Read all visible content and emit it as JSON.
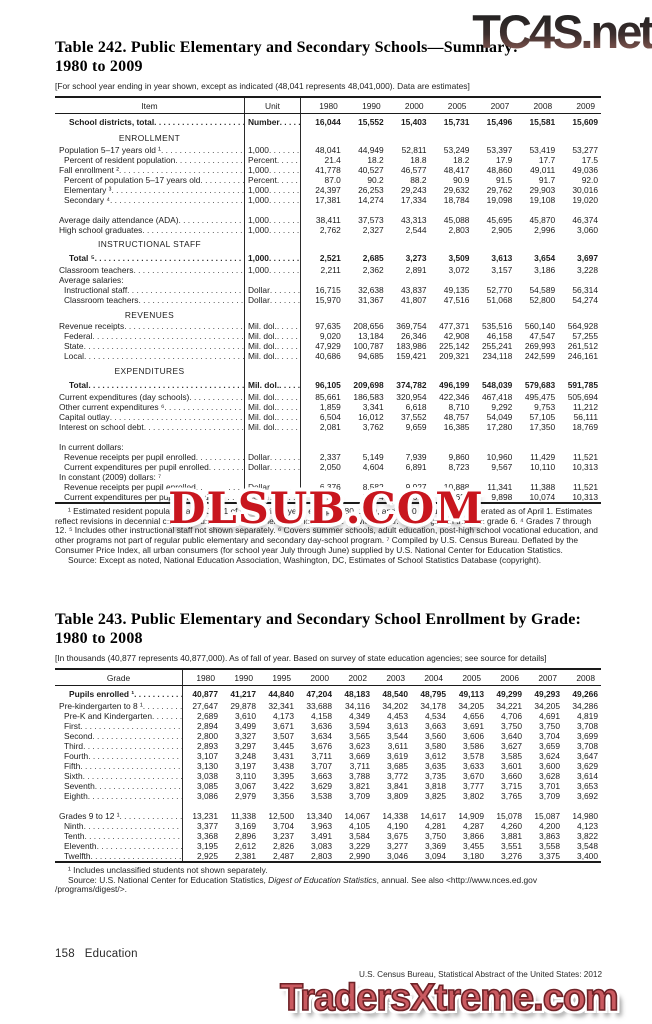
{
  "watermarks": {
    "top": "TC4S.net",
    "middle": "DLSUB.COM",
    "bottom": "TradersXtreme.com"
  },
  "footer": {
    "page_number": "158",
    "section_label": "Education",
    "source_line": "U.S. Census Bureau, Statistical Abstract of the United States: 2012"
  },
  "table242": {
    "title": "Table 242. Public Elementary and Secondary Schools—Summary:",
    "title_line2": "1980 to 2009",
    "note": "[For school year ending in year shown, except as indicated (48,041 represents 48,041,000). Data are estimates]",
    "columns": [
      "Item",
      "Unit",
      "1980",
      "1990",
      "2000",
      "2005",
      "2007",
      "2008",
      "2009"
    ],
    "rows": [
      {
        "type": "data",
        "tall": true,
        "bold": true,
        "indent": 2,
        "label": "School districts, total",
        "unit": "Number",
        "values": [
          "16,044",
          "15,552",
          "15,403",
          "15,731",
          "15,496",
          "15,581",
          "15,609"
        ]
      },
      {
        "type": "section",
        "label": "ENROLLMENT"
      },
      {
        "type": "data",
        "indent": 0,
        "label": "Population 5–17 years old ¹",
        "unit": "1,000",
        "values": [
          "48,041",
          "44,949",
          "52,811",
          "53,249",
          "53,397",
          "53,419",
          "53,277"
        ]
      },
      {
        "type": "data",
        "indent": 1,
        "label": "Percent of resident population",
        "unit": "Percent",
        "values": [
          "21.4",
          "18.2",
          "18.8",
          "18.2",
          "17.9",
          "17.7",
          "17.5"
        ]
      },
      {
        "type": "data",
        "indent": 0,
        "label": "Fall enrollment ²",
        "unit": "1,000",
        "values": [
          "41,778",
          "40,527",
          "46,577",
          "48,417",
          "48,860",
          "49,011",
          "49,036"
        ]
      },
      {
        "type": "data",
        "indent": 1,
        "label": "Percent of population 5–17 years old",
        "unit": "Percent",
        "values": [
          "87.0",
          "90.2",
          "88.2",
          "90.9",
          "91.5",
          "91.7",
          "92.0"
        ]
      },
      {
        "type": "data",
        "indent": 1,
        "label": "Elementary ³",
        "unit": "1,000",
        "values": [
          "24,397",
          "26,253",
          "29,243",
          "29,632",
          "29,762",
          "29,903",
          "30,016"
        ]
      },
      {
        "type": "data",
        "indent": 1,
        "label": "Secondary ⁴",
        "unit": "1,000",
        "values": [
          "17,381",
          "14,274",
          "17,334",
          "18,784",
          "19,098",
          "19,108",
          "19,020"
        ]
      },
      {
        "type": "gap"
      },
      {
        "type": "data",
        "indent": 0,
        "label": "Average daily attendance (ADA)",
        "unit": "1,000",
        "values": [
          "38,411",
          "37,573",
          "43,313",
          "45,088",
          "45,695",
          "45,870",
          "46,374"
        ]
      },
      {
        "type": "data",
        "indent": 0,
        "label": "High school graduates",
        "unit": "1,000",
        "values": [
          "2,762",
          "2,327",
          "2,544",
          "2,803",
          "2,905",
          "2,996",
          "3,060"
        ]
      },
      {
        "type": "section",
        "label": "INSTRUCTIONAL STAFF"
      },
      {
        "type": "data",
        "tall": true,
        "bold": true,
        "indent": 2,
        "label": "Total ⁵",
        "unit": "1,000",
        "values": [
          "2,521",
          "2,685",
          "3,273",
          "3,509",
          "3,613",
          "3,654",
          "3,697"
        ]
      },
      {
        "type": "data",
        "indent": 0,
        "label": "Classroom teachers",
        "unit": "1,000",
        "values": [
          "2,211",
          "2,362",
          "2,891",
          "3,072",
          "3,157",
          "3,186",
          "3,228"
        ]
      },
      {
        "type": "plain",
        "indent": 0,
        "label": "Average salaries:"
      },
      {
        "type": "data",
        "indent": 1,
        "label": "Instructional staff",
        "unit": "Dollar",
        "values": [
          "16,715",
          "32,638",
          "43,837",
          "49,135",
          "52,770",
          "54,589",
          "56,314"
        ]
      },
      {
        "type": "data",
        "indent": 1,
        "label": "Classroom teachers",
        "unit": "Dollar",
        "values": [
          "15,970",
          "31,367",
          "41,807",
          "47,516",
          "51,068",
          "52,800",
          "54,274"
        ]
      },
      {
        "type": "section",
        "label": "REVENUES"
      },
      {
        "type": "data",
        "indent": 0,
        "label": "Revenue receipts",
        "unit": "Mil. dol.",
        "values": [
          "97,635",
          "208,656",
          "369,754",
          "477,371",
          "535,516",
          "560,140",
          "564,928"
        ]
      },
      {
        "type": "data",
        "indent": 1,
        "label": "Federal",
        "unit": "Mil. dol.",
        "values": [
          "9,020",
          "13,184",
          "26,346",
          "42,908",
          "46,158",
          "47,547",
          "57,255"
        ]
      },
      {
        "type": "data",
        "indent": 1,
        "label": "State",
        "unit": "Mil. dol.",
        "values": [
          "47,929",
          "100,787",
          "183,986",
          "225,142",
          "255,241",
          "269,993",
          "261,512"
        ]
      },
      {
        "type": "data",
        "indent": 1,
        "label": "Local",
        "unit": "Mil. dol.",
        "values": [
          "40,686",
          "94,685",
          "159,421",
          "209,321",
          "234,118",
          "242,599",
          "246,161"
        ]
      },
      {
        "type": "section",
        "label": "EXPENDITURES"
      },
      {
        "type": "data",
        "tall": true,
        "bold": true,
        "indent": 2,
        "label": "Total",
        "unit": "Mil. dol.",
        "values": [
          "96,105",
          "209,698",
          "374,782",
          "496,199",
          "548,039",
          "579,683",
          "591,785"
        ]
      },
      {
        "type": "data",
        "indent": 0,
        "label": "Current expenditures (day schools)",
        "unit": "Mil. dol.",
        "values": [
          "85,661",
          "186,583",
          "320,954",
          "422,346",
          "467,418",
          "495,475",
          "505,694"
        ]
      },
      {
        "type": "data",
        "indent": 0,
        "label": "Other current expenditures ⁶",
        "unit": "Mil. dol.",
        "values": [
          "1,859",
          "3,341",
          "6,618",
          "8,710",
          "9,292",
          "9,753",
          "11,212"
        ]
      },
      {
        "type": "data",
        "indent": 0,
        "label": "Capital outlay",
        "unit": "Mil. dol.",
        "values": [
          "6,504",
          "16,012",
          "37,552",
          "48,757",
          "54,049",
          "57,105",
          "56,111"
        ]
      },
      {
        "type": "data",
        "indent": 0,
        "label": "Interest on school debt",
        "unit": "Mil. dol.",
        "values": [
          "2,081",
          "3,762",
          "9,659",
          "16,385",
          "17,280",
          "17,350",
          "18,769"
        ]
      },
      {
        "type": "gap"
      },
      {
        "type": "plain",
        "indent": 0,
        "label": "In current dollars:"
      },
      {
        "type": "data",
        "indent": 1,
        "label": "Revenue receipts per pupil enrolled",
        "unit": "Dollar",
        "values": [
          "2,337",
          "5,149",
          "7,939",
          "9,860",
          "10,960",
          "11,429",
          "11,521"
        ]
      },
      {
        "type": "data",
        "indent": 1,
        "label": "Current expenditures per pupil enrolled",
        "unit": "Dollar",
        "values": [
          "2,050",
          "4,604",
          "6,891",
          "8,723",
          "9,567",
          "10,110",
          "10,313"
        ]
      },
      {
        "type": "plain",
        "indent": 0,
        "label": "In constant (2009) dollars: ⁷"
      },
      {
        "type": "data",
        "indent": 1,
        "label": "Revenue receipts per pupil enrolled",
        "unit": "Dollar",
        "values": [
          "6,376",
          "8,582",
          "9,927",
          "10,888",
          "11,341",
          "11,388",
          "11,521"
        ]
      },
      {
        "type": "data",
        "indent": 1,
        "label": "Current expenditures per pupil enrolled",
        "unit": "Dollar",
        "values": [
          "5,594",
          "7,674",
          "8,617",
          "9,633",
          "9,898",
          "10,074",
          "10,313"
        ]
      }
    ],
    "footnote": "¹ Estimated resident population as of July 1 of the previous year, except 1980, 1990, and 2000 population enumerated as of April 1. Estimates reflect revisions in decennial census counts. ² Fall enrollment of schools of the previous year. ³ Kindergarten through grade 6. ⁴ Grades 7 through 12. ⁵ Includes other instructional staff not shown separately. ⁶ Covers summer schools, adult education, post-high school vocational education, and other programs not part of regular public elementary and secondary day-school program. ⁷ Compiled by U.S. Census Bureau. Deflated by the Consumer Price Index, all urban consumers (for school year July through June) supplied by U.S. National Center for Education Statistics.",
    "source": "Source: Except as noted, National Education Association, Washington, DC, Estimates of School Statistics Database (copyright)."
  },
  "table243": {
    "title": "Table 243. Public Elementary and Secondary School Enrollment by Grade:",
    "title_line2": "1980 to 2008",
    "note": "[In thousands (40,877 represents 40,877,000). As of fall of year. Based on survey of state education agencies; see source for details]",
    "columns": [
      "Grade",
      "1980",
      "1990",
      "1995",
      "2000",
      "2002",
      "2003",
      "2004",
      "2005",
      "2006",
      "2007",
      "2008"
    ],
    "rows": [
      {
        "type": "data",
        "tall": true,
        "bold": true,
        "indent": 2,
        "label": "Pupils enrolled ¹",
        "values": [
          "40,877",
          "41,217",
          "44,840",
          "47,204",
          "48,183",
          "48,540",
          "48,795",
          "49,113",
          "49,299",
          "49,293",
          "49,266"
        ]
      },
      {
        "type": "data",
        "indent": 0,
        "label": "Pre-kindergarten to 8 ¹",
        "values": [
          "27,647",
          "29,878",
          "32,341",
          "33,688",
          "34,116",
          "34,202",
          "34,178",
          "34,205",
          "34,221",
          "34,205",
          "34,286"
        ]
      },
      {
        "type": "data",
        "indent": 1,
        "label": "Pre-K and Kindergarten",
        "values": [
          "2,689",
          "3,610",
          "4,173",
          "4,158",
          "4,349",
          "4,453",
          "4,534",
          "4,656",
          "4,706",
          "4,691",
          "4,819"
        ]
      },
      {
        "type": "data",
        "indent": 1,
        "label": "First",
        "values": [
          "2,894",
          "3,499",
          "3,671",
          "3,636",
          "3,594",
          "3,613",
          "3,663",
          "3,691",
          "3,750",
          "3,750",
          "3,708"
        ]
      },
      {
        "type": "data",
        "indent": 1,
        "label": "Second",
        "values": [
          "2,800",
          "3,327",
          "3,507",
          "3,634",
          "3,565",
          "3,544",
          "3,560",
          "3,606",
          "3,640",
          "3,704",
          "3,699"
        ]
      },
      {
        "type": "data",
        "indent": 1,
        "label": "Third",
        "values": [
          "2,893",
          "3,297",
          "3,445",
          "3,676",
          "3,623",
          "3,611",
          "3,580",
          "3,586",
          "3,627",
          "3,659",
          "3,708"
        ]
      },
      {
        "type": "data",
        "indent": 1,
        "label": "Fourth",
        "values": [
          "3,107",
          "3,248",
          "3,431",
          "3,711",
          "3,669",
          "3,619",
          "3,612",
          "3,578",
          "3,585",
          "3,624",
          "3,647"
        ]
      },
      {
        "type": "data",
        "indent": 1,
        "label": "Fifth",
        "values": [
          "3,130",
          "3,197",
          "3,438",
          "3,707",
          "3,711",
          "3,685",
          "3,635",
          "3,633",
          "3,601",
          "3,600",
          "3,629"
        ]
      },
      {
        "type": "data",
        "indent": 1,
        "label": "Sixth",
        "values": [
          "3,038",
          "3,110",
          "3,395",
          "3,663",
          "3,788",
          "3,772",
          "3,735",
          "3,670",
          "3,660",
          "3,628",
          "3,614"
        ]
      },
      {
        "type": "data",
        "indent": 1,
        "label": "Seventh",
        "values": [
          "3,085",
          "3,067",
          "3,422",
          "3,629",
          "3,821",
          "3,841",
          "3,818",
          "3,777",
          "3,715",
          "3,701",
          "3,653"
        ]
      },
      {
        "type": "data",
        "indent": 1,
        "label": "Eighth",
        "values": [
          "3,086",
          "2,979",
          "3,356",
          "3,538",
          "3,709",
          "3,809",
          "3,825",
          "3,802",
          "3,765",
          "3,709",
          "3,692"
        ]
      },
      {
        "type": "gap"
      },
      {
        "type": "data",
        "indent": 0,
        "label": "Grades 9 to 12 ¹",
        "values": [
          "13,231",
          "11,338",
          "12,500",
          "13,340",
          "14,067",
          "14,338",
          "14,617",
          "14,909",
          "15,078",
          "15,087",
          "14,980"
        ]
      },
      {
        "type": "data",
        "indent": 1,
        "label": "Ninth",
        "values": [
          "3,377",
          "3,169",
          "3,704",
          "3,963",
          "4,105",
          "4,190",
          "4,281",
          "4,287",
          "4,260",
          "4,200",
          "4,123"
        ]
      },
      {
        "type": "data",
        "indent": 1,
        "label": "Tenth",
        "values": [
          "3,368",
          "2,896",
          "3,237",
          "3,491",
          "3,584",
          "3,675",
          "3,750",
          "3,866",
          "3,881",
          "3,863",
          "3,822"
        ]
      },
      {
        "type": "data",
        "indent": 1,
        "label": "Eleventh",
        "values": [
          "3,195",
          "2,612",
          "2,826",
          "3,083",
          "3,229",
          "3,277",
          "3,369",
          "3,455",
          "3,551",
          "3,558",
          "3,548"
        ]
      },
      {
        "type": "data",
        "indent": 1,
        "label": "Twelfth",
        "values": [
          "2,925",
          "2,381",
          "2,487",
          "2,803",
          "2,990",
          "3,046",
          "3,094",
          "3,180",
          "3,276",
          "3,375",
          "3,400"
        ]
      }
    ],
    "footnote": "¹ Includes unclassified students not shown separately.",
    "source_prefix": "Source: U.S. National Center for Education Statistics, ",
    "source_italic": "Digest of Education Statistics",
    "source_suffix": ", annual. See also <http://www.nces.ed.gov /programs/digest/>."
  }
}
